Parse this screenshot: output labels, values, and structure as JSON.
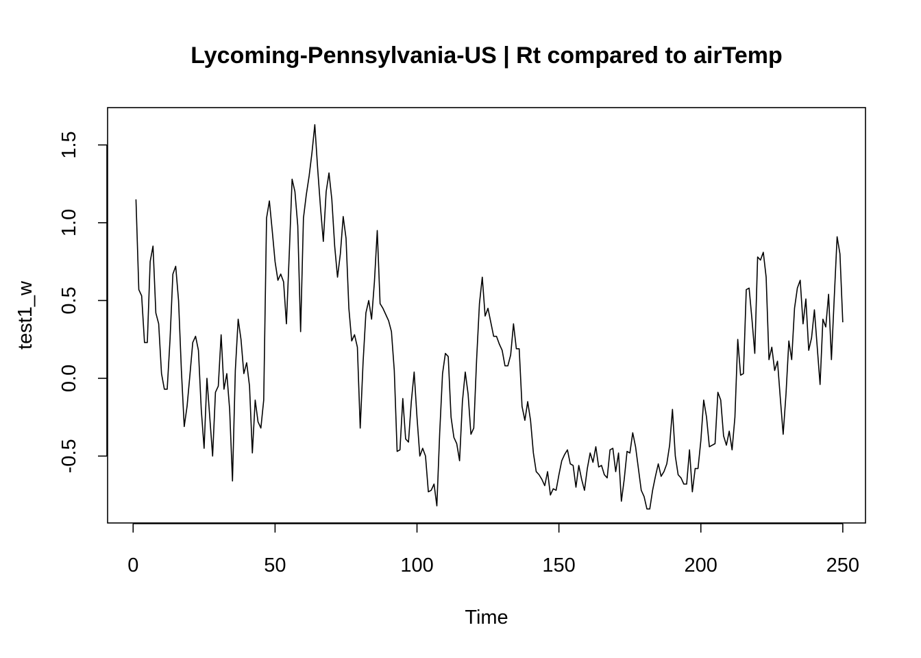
{
  "chart_data": {
    "type": "line",
    "title": "Lycoming-Pennsylvania-US | Rt compared to airTemp",
    "xlabel": "Time",
    "ylabel": "test1_w",
    "xlim": [
      -9,
      258
    ],
    "ylim": [
      -0.93,
      1.74
    ],
    "x_ticks": [
      0,
      50,
      100,
      150,
      200,
      250
    ],
    "y_ticks": [
      -0.5,
      0.0,
      0.5,
      1.0,
      1.5
    ],
    "x_tick_labels": [
      "0",
      "50",
      "100",
      "150",
      "200",
      "250"
    ],
    "y_tick_labels": [
      "-0.5",
      "0.0",
      "0.5",
      "1.0",
      "1.5"
    ],
    "grid": false,
    "legend": "none",
    "series": [
      {
        "x_start": 1,
        "x_step": 1,
        "values": [
          1.15,
          0.57,
          0.53,
          0.23,
          0.23,
          0.75,
          0.85,
          0.42,
          0.35,
          0.03,
          -0.07,
          -0.07,
          0.25,
          0.67,
          0.72,
          0.5,
          0.05,
          -0.31,
          -0.18,
          0.02,
          0.23,
          0.27,
          0.18,
          -0.2,
          -0.45,
          0.0,
          -0.25,
          -0.5,
          -0.09,
          -0.05,
          0.28,
          -0.07,
          0.03,
          -0.2,
          -0.66,
          0.05,
          0.38,
          0.25,
          0.03,
          0.1,
          -0.05,
          -0.48,
          -0.14,
          -0.28,
          -0.32,
          -0.14,
          1.03,
          1.14,
          0.95,
          0.75,
          0.63,
          0.67,
          0.62,
          0.35,
          0.8,
          1.28,
          1.2,
          0.98,
          0.3,
          1.03,
          1.18,
          1.3,
          1.45,
          1.63,
          1.35,
          1.1,
          0.88,
          1.2,
          1.32,
          1.15,
          0.85,
          0.65,
          0.8,
          1.04,
          0.9,
          0.45,
          0.24,
          0.28,
          0.2,
          -0.32,
          0.1,
          0.42,
          0.5,
          0.38,
          0.62,
          0.95,
          0.48,
          0.45,
          0.41,
          0.37,
          0.3,
          0.05,
          -0.47,
          -0.46,
          -0.13,
          -0.39,
          -0.41,
          -0.15,
          0.04,
          -0.25,
          -0.5,
          -0.45,
          -0.5,
          -0.73,
          -0.72,
          -0.68,
          -0.82,
          -0.35,
          0.03,
          0.16,
          0.14,
          -0.25,
          -0.38,
          -0.42,
          -0.53,
          -0.15,
          0.04,
          -0.1,
          -0.36,
          -0.32,
          0.12,
          0.48,
          0.65,
          0.4,
          0.45,
          0.36,
          0.27,
          0.27,
          0.22,
          0.18,
          0.08,
          0.08,
          0.15,
          0.35,
          0.19,
          0.19,
          -0.18,
          -0.27,
          -0.15,
          -0.27,
          -0.48,
          -0.6,
          -0.62,
          -0.65,
          -0.69,
          -0.6,
          -0.75,
          -0.71,
          -0.72,
          -0.62,
          -0.53,
          -0.49,
          -0.46,
          -0.55,
          -0.56,
          -0.7,
          -0.56,
          -0.65,
          -0.72,
          -0.58,
          -0.48,
          -0.54,
          -0.44,
          -0.57,
          -0.56,
          -0.62,
          -0.64,
          -0.46,
          -0.45,
          -0.6,
          -0.48,
          -0.79,
          -0.65,
          -0.47,
          -0.48,
          -0.35,
          -0.44,
          -0.58,
          -0.72,
          -0.76,
          -0.84,
          -0.84,
          -0.72,
          -0.63,
          -0.55,
          -0.63,
          -0.6,
          -0.55,
          -0.43,
          -0.2,
          -0.5,
          -0.62,
          -0.64,
          -0.68,
          -0.68,
          -0.46,
          -0.73,
          -0.58,
          -0.58,
          -0.4,
          -0.14,
          -0.25,
          -0.44,
          -0.43,
          -0.42,
          -0.09,
          -0.14,
          -0.37,
          -0.43,
          -0.34,
          -0.46,
          -0.25,
          0.25,
          0.02,
          0.03,
          0.57,
          0.58,
          0.38,
          0.16,
          0.78,
          0.76,
          0.81,
          0.65,
          0.12,
          0.2,
          0.05,
          0.11,
          -0.13,
          -0.36,
          -0.1,
          0.24,
          0.12,
          0.45,
          0.58,
          0.63,
          0.35,
          0.51,
          0.18,
          0.26,
          0.44,
          0.2,
          -0.04,
          0.38,
          0.33,
          0.54,
          0.12,
          0.52,
          0.91,
          0.8,
          0.36
        ]
      }
    ]
  }
}
